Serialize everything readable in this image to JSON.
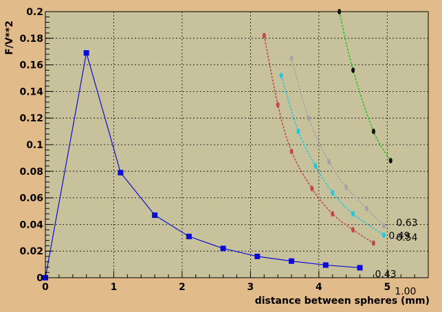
{
  "chart_data": {
    "type": "scatter",
    "title": "",
    "xlabel": "distance between spheres (mm)",
    "ylabel": "F/V**2",
    "xlim": [
      0,
      5.6
    ],
    "ylim": [
      0,
      0.2
    ],
    "xticks": [
      "0",
      "1",
      "2",
      "3",
      "4",
      "5"
    ],
    "yticks": [
      "0",
      "0.02",
      "0.04",
      "0.06",
      "0.08",
      "0.1",
      "0.12",
      "0.14",
      "0.16",
      "0.18",
      "0.2"
    ],
    "grid": true,
    "colors": {
      "frame_bg": "#e2bb8a",
      "plot_bg": "#c8c29c",
      "blue": "#0b0bd6",
      "red": "#c04848",
      "cyan": "#20c8e0",
      "gray": "#a8a0a8",
      "green": "#1ec81e"
    },
    "series": [
      {
        "name": "0.43",
        "color": "#0b0bd6",
        "marker": "square",
        "style": "solid",
        "x": [
          0.0,
          0.6,
          1.1,
          1.6,
          2.1,
          2.6,
          3.1,
          3.6,
          4.1,
          4.6
        ],
        "y": [
          0.0,
          0.169,
          0.079,
          0.047,
          0.031,
          0.022,
          0.016,
          0.0125,
          0.0095,
          0.0075
        ]
      },
      {
        "name": "0.49",
        "color": "#c04848",
        "marker": "dot",
        "style": "dashed",
        "x": [
          3.2,
          3.4,
          3.6,
          3.9,
          4.2,
          4.5,
          4.8
        ],
        "y": [
          0.182,
          0.13,
          0.095,
          0.067,
          0.048,
          0.036,
          0.026
        ]
      },
      {
        "name": "0.54",
        "color": "#20c8e0",
        "marker": "dot",
        "style": "dashed",
        "x": [
          3.45,
          3.7,
          3.95,
          4.2,
          4.5,
          4.95
        ],
        "y": [
          0.152,
          0.11,
          0.084,
          0.064,
          0.048,
          0.032
        ]
      },
      {
        "name": "0.63",
        "color": "#a8a0a8",
        "marker": "dot",
        "style": "dashed",
        "x": [
          3.6,
          3.85,
          4.15,
          4.4,
          4.7,
          4.95
        ],
        "y": [
          0.165,
          0.12,
          0.087,
          0.068,
          0.052,
          0.039
        ]
      },
      {
        "name": "1.00",
        "color": "#1ec81e",
        "marker": "dot",
        "style": "dashed",
        "x": [
          4.3,
          4.5,
          4.8,
          5.05
        ],
        "y": [
          0.2,
          0.156,
          0.11,
          0.088
        ]
      }
    ]
  }
}
